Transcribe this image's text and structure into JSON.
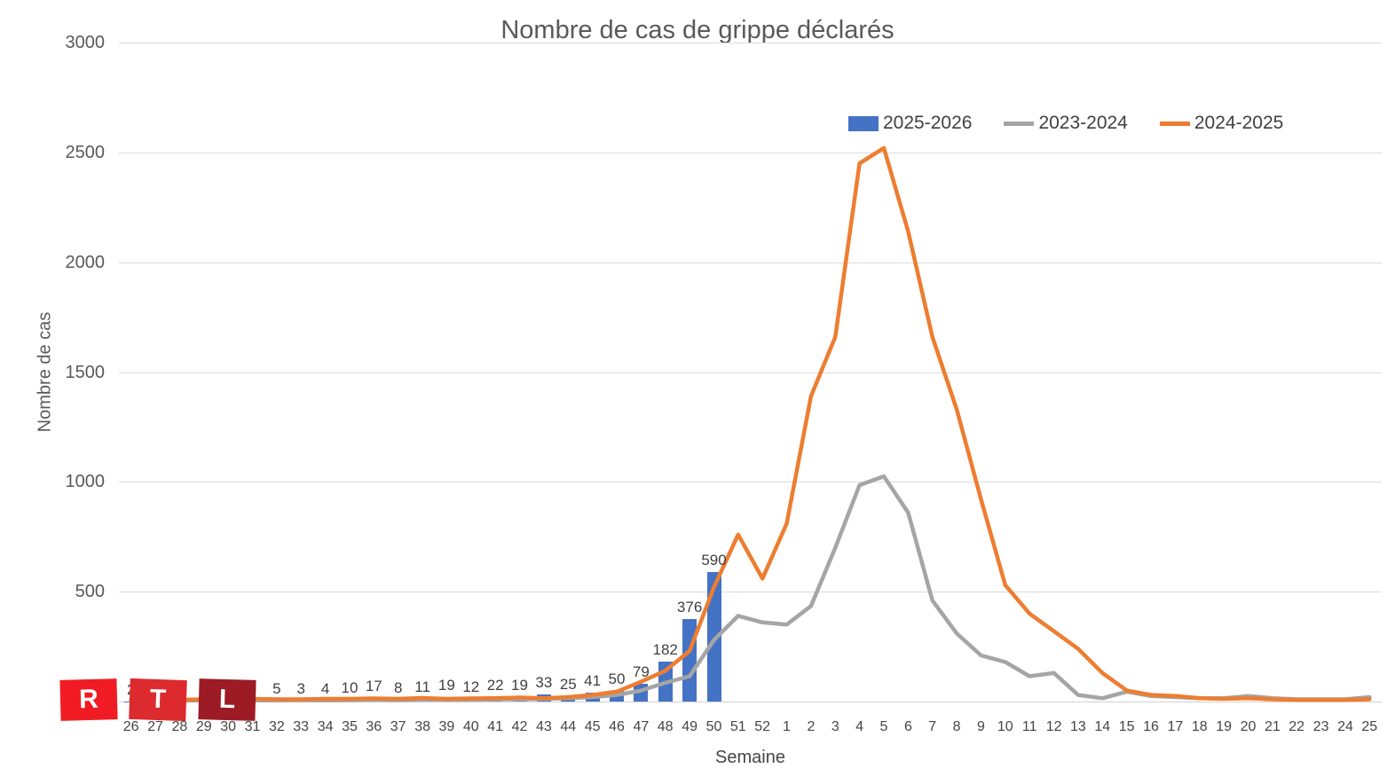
{
  "title": "Nombre de cas de grippe déclarés",
  "y_axis": {
    "title": "Nombre de cas",
    "ticks": [
      3000,
      2500,
      2000,
      1500,
      1000,
      500
    ]
  },
  "x_axis": {
    "title": "Semaine"
  },
  "legend": [
    {
      "label": "2025-2026",
      "color": "#4472C4",
      "swatch": "bar"
    },
    {
      "label": "2023-2024",
      "color": "#A5A5A5",
      "swatch": "line"
    },
    {
      "label": "2024-2025",
      "color": "#ED7D31",
      "swatch": "line"
    }
  ],
  "logo": {
    "letters": [
      "R",
      "T",
      "L"
    ],
    "colors": [
      "#F11C23",
      "#DD2A2E",
      "#9C1B24"
    ]
  },
  "chart_data": {
    "type": "bar",
    "combo": "bars + 2 line series",
    "categories": [
      "26",
      "27",
      "28",
      "29",
      "30",
      "31",
      "32",
      "33",
      "34",
      "35",
      "36",
      "37",
      "38",
      "39",
      "40",
      "41",
      "42",
      "43",
      "44",
      "45",
      "46",
      "47",
      "48",
      "49",
      "50",
      "51",
      "52",
      "1",
      "2",
      "3",
      "4",
      "5",
      "6",
      "7",
      "8",
      "9",
      "10",
      "11",
      "12",
      "13",
      "14",
      "15",
      "16",
      "17",
      "18",
      "19",
      "20",
      "21",
      "22",
      "23",
      "24",
      "25"
    ],
    "series": [
      {
        "name": "2025-2026",
        "type": "bar",
        "color": "#4472C4",
        "values": [
          2,
          2,
          0,
          1,
          4,
          3,
          5,
          3,
          4,
          10,
          17,
          8,
          11,
          19,
          12,
          22,
          19,
          33,
          25,
          41,
          50,
          79,
          182,
          376,
          590,
          null,
          null,
          null,
          null,
          null,
          null,
          null,
          null,
          null,
          null,
          null,
          null,
          null,
          null,
          null,
          null,
          null,
          null,
          null,
          null,
          null,
          null,
          null,
          null,
          null,
          null,
          null
        ],
        "data_labels": [
          "2",
          "2",
          "0",
          "1",
          "4",
          "3",
          "5",
          "3",
          "4",
          "10",
          "17",
          "8",
          "11",
          "19",
          "12",
          "22",
          "19",
          "33",
          "25",
          "41",
          "50",
          "79",
          "182",
          "376",
          "590"
        ]
      },
      {
        "name": "2023-2024",
        "type": "line",
        "color": "#A5A5A5",
        "values": [
          5,
          5,
          4,
          5,
          6,
          5,
          5,
          6,
          5,
          6,
          8,
          6,
          8,
          8,
          8,
          10,
          10,
          12,
          15,
          20,
          30,
          50,
          85,
          115,
          280,
          390,
          360,
          350,
          435,
          700,
          985,
          1025,
          860,
          460,
          310,
          210,
          180,
          115,
          130,
          30,
          15,
          45,
          25,
          20,
          15,
          15,
          25,
          15,
          10,
          10,
          10,
          20
        ]
      },
      {
        "name": "2024-2025",
        "type": "line",
        "color": "#ED7D31",
        "values": [
          10,
          12,
          8,
          10,
          14,
          12,
          10,
          10,
          12,
          12,
          14,
          12,
          16,
          12,
          14,
          15,
          18,
          15,
          20,
          30,
          45,
          90,
          140,
          230,
          520,
          760,
          560,
          810,
          1390,
          1660,
          2450,
          2520,
          2140,
          1660,
          1330,
          920,
          530,
          400,
          320,
          240,
          130,
          50,
          30,
          25,
          15,
          12,
          15,
          10,
          8,
          8,
          8,
          10
        ]
      }
    ],
    "title": "Nombre de cas de grippe déclarés",
    "xlabel": "Semaine",
    "ylabel": "Nombre de cas",
    "ylim": [
      0,
      3000
    ],
    "grid": "horizontal",
    "legend_position": "top-right"
  }
}
